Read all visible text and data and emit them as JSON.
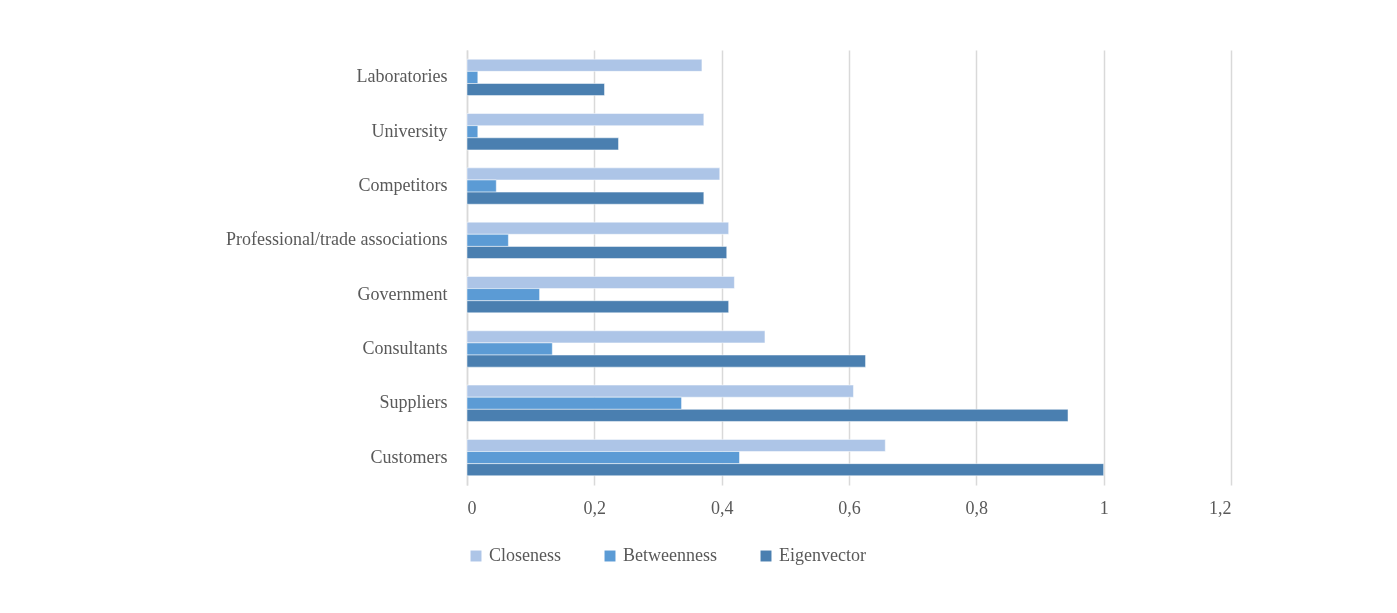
{
  "chart_data": {
    "type": "bar",
    "orientation": "horizontal",
    "categories": [
      "Laboratories",
      "University",
      "Competitors",
      "Professional/trade associations",
      "Government",
      "Consultants",
      "Suppliers",
      "Customers"
    ],
    "series": [
      {
        "name": "Closeness",
        "color": "#adc5e7",
        "values": [
          0.369,
          0.372,
          0.397,
          0.411,
          0.42,
          0.468,
          0.607,
          0.657
        ]
      },
      {
        "name": "Betweenness",
        "color": "#5b9bd5",
        "values": [
          0.017,
          0.017,
          0.046,
          0.065,
          0.114,
          0.134,
          0.337,
          0.428
        ]
      },
      {
        "name": "Eigenvector",
        "color": "#4a7fb0",
        "values": [
          0.216,
          0.238,
          0.372,
          0.408,
          0.411,
          0.626,
          0.944,
          1
        ]
      }
    ],
    "xlim": [
      0,
      1.2
    ],
    "xticks": [
      0,
      {
        "value": 0.2,
        "label": "0,2"
      },
      {
        "value": 0.4,
        "label": "0,4"
      },
      {
        "value": 0.6,
        "label": "0,6"
      },
      {
        "value": 0.8,
        "label": "0,8"
      },
      1,
      {
        "value": 1.2,
        "label": "1,2"
      }
    ],
    "grid": "x",
    "legend": "bottom"
  }
}
